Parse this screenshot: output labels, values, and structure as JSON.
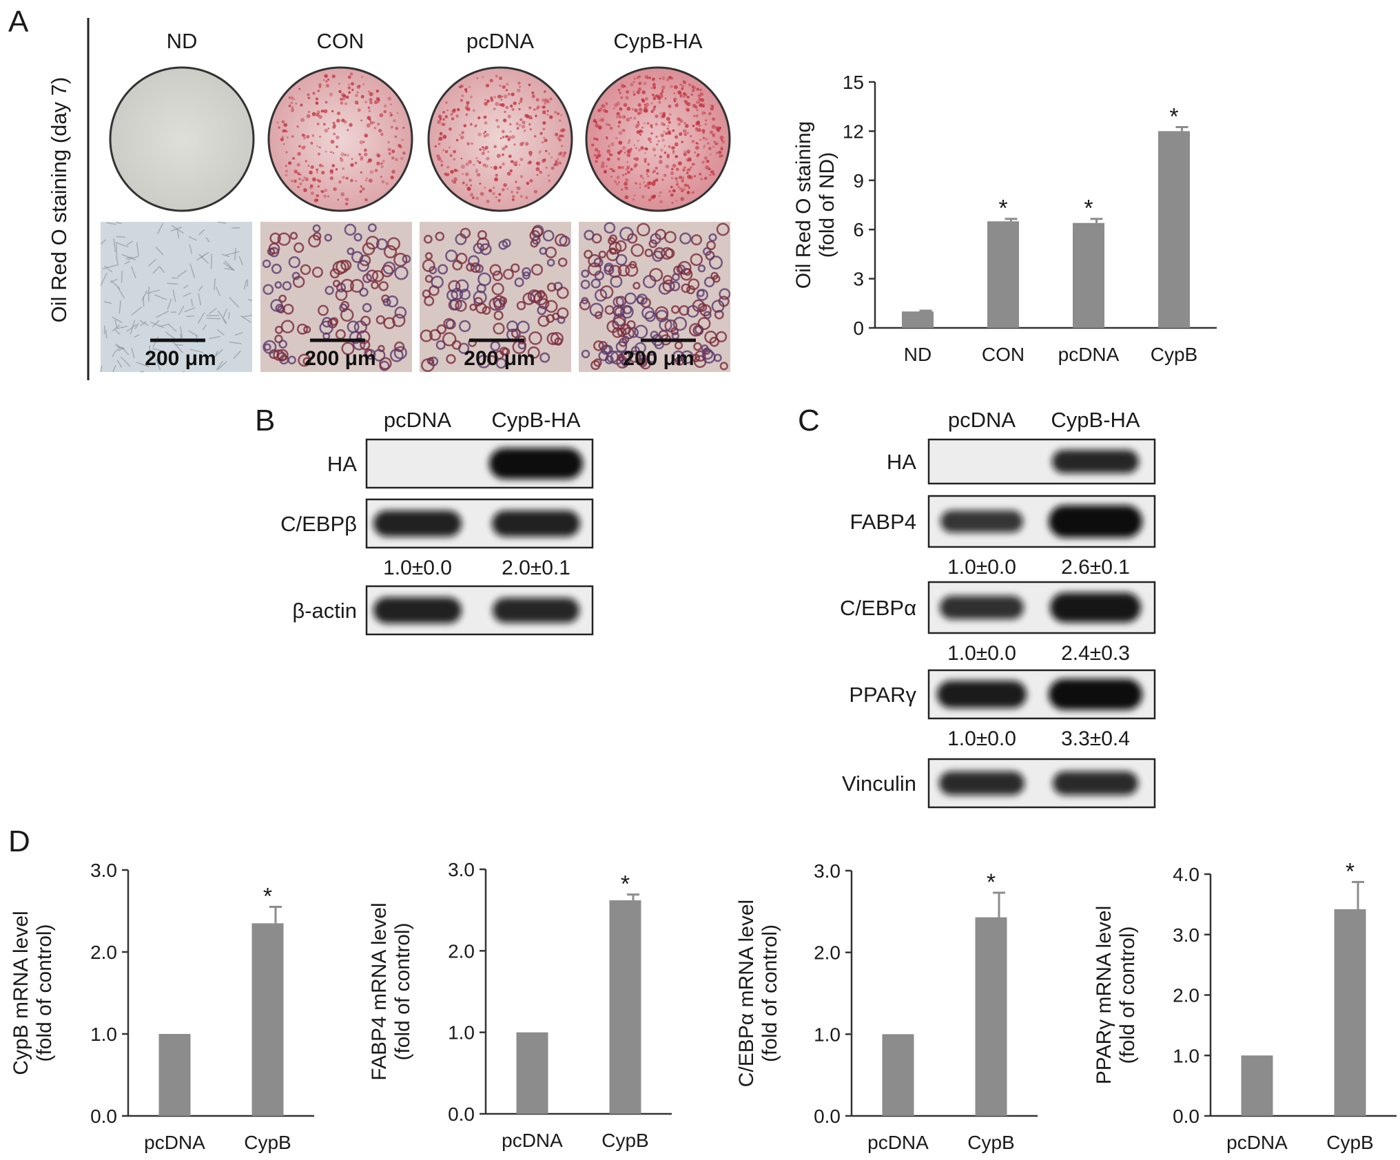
{
  "panel_a": {
    "letter": "A",
    "side_label": "Oil Red O staining (day 7)",
    "conditions": [
      "ND",
      "CON",
      "pcDNA",
      "CypB-HA"
    ],
    "scale_bar_label": "200 μm",
    "stain_color": "#c0303e"
  },
  "panel_b": {
    "letter": "B",
    "lanes": [
      "pcDNA",
      "CypB-HA"
    ],
    "blots": [
      {
        "label": "HA",
        "band_intensity": [
          0.0,
          1.0
        ],
        "quant": []
      },
      {
        "label": "C/EBPβ",
        "band_intensity": [
          0.8,
          0.8
        ],
        "quant": [
          "1.0±0.0",
          "2.0±0.1"
        ]
      },
      {
        "label": "β-actin",
        "band_intensity": [
          0.8,
          0.75
        ],
        "quant": []
      }
    ]
  },
  "panel_c": {
    "letter": "C",
    "lanes": [
      "pcDNA",
      "CypB-HA"
    ],
    "blots": [
      {
        "label": "HA",
        "band_intensity": [
          0.0,
          0.75
        ],
        "quant": []
      },
      {
        "label": "FABP4",
        "band_intensity": [
          0.6,
          1.0
        ],
        "quant": [
          "1.0±0.0",
          "2.6±0.1"
        ]
      },
      {
        "label": "C/EBPα",
        "band_intensity": [
          0.65,
          0.9
        ],
        "quant": [
          "1.0±0.0",
          "2.4±0.3"
        ]
      },
      {
        "label": "PPARγ",
        "band_intensity": [
          0.85,
          1.0
        ],
        "quant": [
          "1.0±0.0",
          "3.3±0.4"
        ]
      },
      {
        "label": "Vinculin",
        "band_intensity": [
          0.7,
          0.7
        ],
        "quant": []
      }
    ]
  },
  "panel_d": {
    "letter": "D"
  },
  "bar_color": "#8c8c8c",
  "chart_data": [
    {
      "type": "bar",
      "panel": "A",
      "categories": [
        "ND",
        "CON",
        "pcDNA",
        "CypB"
      ],
      "values": [
        1.0,
        6.5,
        6.4,
        12.0
      ],
      "errors": [
        0.05,
        0.15,
        0.25,
        0.25
      ],
      "significant": [
        false,
        true,
        true,
        true
      ],
      "ylabel": [
        "Oil Red O staining",
        "(fold of ND)"
      ],
      "ylim": [
        0,
        15
      ],
      "yticks": [
        "0",
        "3",
        "6",
        "9",
        "12",
        "15"
      ],
      "yticks_values": [
        0,
        3,
        6,
        9,
        12,
        15
      ]
    },
    {
      "type": "bar",
      "panel": "D",
      "categories": [
        "pcDNA",
        "CypB"
      ],
      "values": [
        1.0,
        2.35
      ],
      "errors": [
        0.0,
        0.2
      ],
      "significant": [
        false,
        true
      ],
      "ylabel": [
        "CypB mRNA level",
        "(fold of control)"
      ],
      "ylim": [
        0,
        3
      ],
      "yticks": [
        "0.0",
        "1.0",
        "2.0",
        "3.0"
      ],
      "yticks_values": [
        0,
        1,
        2,
        3
      ]
    },
    {
      "type": "bar",
      "panel": "D",
      "categories": [
        "pcDNA",
        "CypB"
      ],
      "values": [
        1.0,
        2.62
      ],
      "errors": [
        0.0,
        0.07
      ],
      "significant": [
        false,
        true
      ],
      "ylabel": [
        "FABP4 mRNA level",
        "(fold of control)"
      ],
      "ylim": [
        0,
        3
      ],
      "yticks": [
        "0.0",
        "1.0",
        "2.0",
        "3.0"
      ],
      "yticks_values": [
        0,
        1,
        2,
        3
      ]
    },
    {
      "type": "bar",
      "panel": "D",
      "categories": [
        "pcDNA",
        "CypB"
      ],
      "values": [
        1.0,
        2.43
      ],
      "errors": [
        0.0,
        0.3
      ],
      "significant": [
        false,
        true
      ],
      "ylabel": [
        "C/EBPα mRNA level",
        "(fold of control)"
      ],
      "ylim": [
        0,
        3
      ],
      "yticks": [
        "0.0",
        "1.0",
        "2.0",
        "3.0"
      ],
      "yticks_values": [
        0,
        1,
        2,
        3
      ]
    },
    {
      "type": "bar",
      "panel": "D",
      "categories": [
        "pcDNA",
        "CypB"
      ],
      "values": [
        1.0,
        3.42
      ],
      "errors": [
        0.0,
        0.45
      ],
      "significant": [
        false,
        true
      ],
      "ylabel": [
        "PPARγ mRNA level",
        "(fold of control)"
      ],
      "ylim": [
        0,
        4
      ],
      "yticks": [
        "0.0",
        "1.0",
        "2.0",
        "3.0",
        "4.0"
      ],
      "yticks_values": [
        0,
        1,
        2,
        3,
        4
      ]
    }
  ]
}
